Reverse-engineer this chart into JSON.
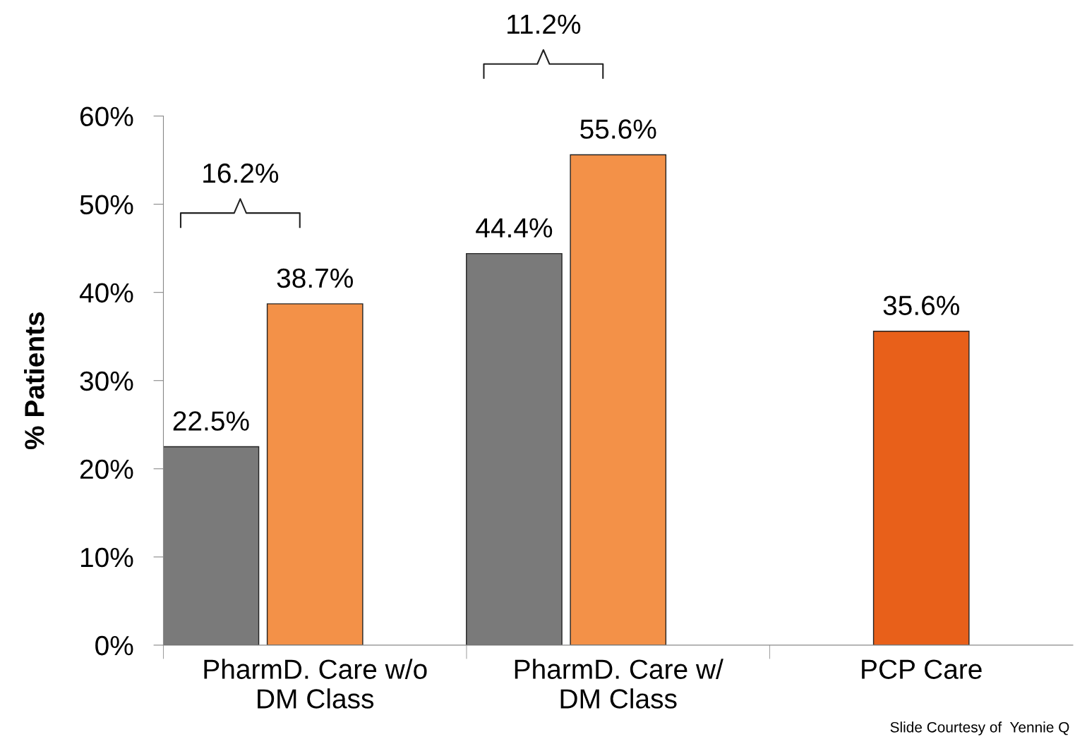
{
  "chart_data": {
    "type": "bar",
    "ylabel": "% Patients",
    "categories": [
      "PharmD. Care w/o\nDM Class",
      "PharmD. Care w/\nDM Class",
      "PCP Care"
    ],
    "series": [
      {
        "color": "#7a7a7a",
        "values": [
          22.5,
          44.4,
          null
        ]
      },
      {
        "colors": [
          "#f39148",
          "#f39148",
          "#e8601a"
        ],
        "values": [
          38.7,
          55.6,
          35.6
        ]
      }
    ],
    "ylim": [
      0,
      60
    ],
    "yticks": [
      {
        "value": 0,
        "label": "0%"
      },
      {
        "value": 10,
        "label": "10%"
      },
      {
        "value": 20,
        "label": "20%"
      },
      {
        "value": 30,
        "label": "30%"
      },
      {
        "value": 40,
        "label": "40%"
      },
      {
        "value": 50,
        "label": "50%"
      },
      {
        "value": 60,
        "label": "60%"
      }
    ],
    "value_labels": [
      [
        "22.5%",
        "44.4%",
        null
      ],
      [
        "38.7%",
        "55.6%",
        "35.6%"
      ]
    ],
    "annotations": [
      "16.2%",
      "11.2%",
      "Slide Courtesy of  Yennie Q"
    ],
    "grid": false
  }
}
